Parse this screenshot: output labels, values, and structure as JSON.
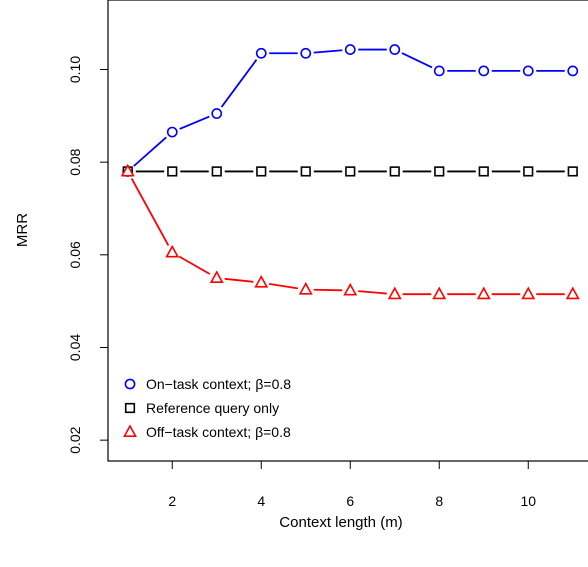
{
  "chart_data": {
    "type": "line",
    "xlabel": "Context length (m)",
    "ylabel": "MRR",
    "xlim": [
      0.7,
      11.2
    ],
    "ylim": [
      0.0155,
      0.115
    ],
    "x_ticks": [
      2,
      4,
      6,
      8,
      10
    ],
    "x_tick_labels": [
      "2",
      "4",
      "6",
      "8",
      "10"
    ],
    "y_ticks": [
      0.02,
      0.04,
      0.06,
      0.08,
      0.1
    ],
    "y_tick_labels": [
      "0.02",
      "0.04",
      "0.06",
      "0.08",
      "0.10"
    ],
    "grid": false,
    "legend_position": "bottom-left",
    "x": [
      1,
      2,
      3,
      4,
      5,
      6,
      7,
      8,
      9,
      10,
      11
    ],
    "series": [
      {
        "name": "On−task context; β=0.8",
        "marker": "circle",
        "color": "#0000ff",
        "values": [
          0.078,
          0.0865,
          0.0905,
          0.1035,
          0.1035,
          0.1043,
          0.1043,
          0.0997,
          0.0997,
          0.0997,
          0.0997
        ]
      },
      {
        "name": "Reference query only",
        "marker": "square",
        "color": "#000000",
        "values": [
          0.078,
          0.078,
          0.078,
          0.078,
          0.078,
          0.078,
          0.078,
          0.078,
          0.078,
          0.078,
          0.078
        ]
      },
      {
        "name": "Off−task context; β=0.8",
        "marker": "triangle",
        "color": "#ff0000",
        "values": [
          0.078,
          0.0605,
          0.055,
          0.054,
          0.0525,
          0.0523,
          0.0515,
          0.0515,
          0.0515,
          0.0515,
          0.0515
        ]
      }
    ]
  }
}
